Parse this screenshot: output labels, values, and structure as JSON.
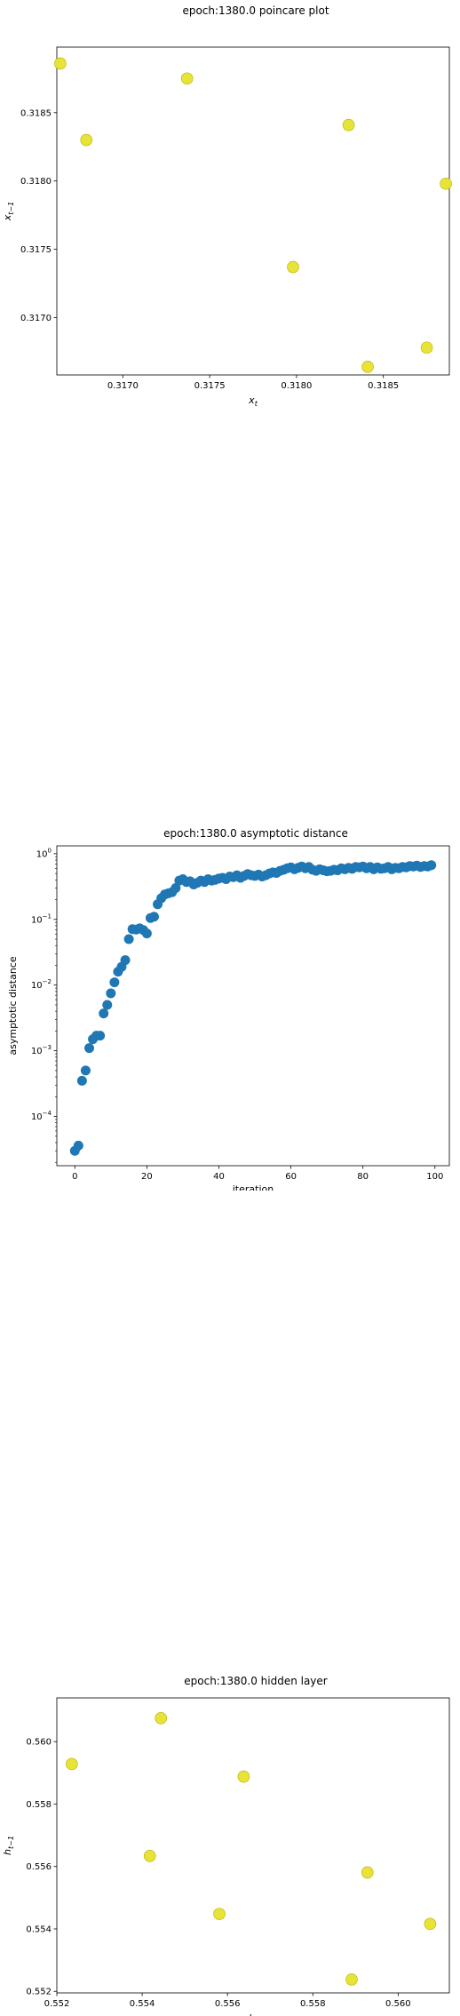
{
  "chart_data": [
    {
      "type": "scatter",
      "title": "epoch:1380.0 poincare plot",
      "xlabel": "x_t",
      "ylabel": "x_{t-1}",
      "xlim": [
        0.31662,
        0.31888
      ],
      "ylim": [
        0.31658,
        0.31898
      ],
      "xticks": [
        0.317,
        0.3175,
        0.318,
        0.3185
      ],
      "xtick_labels": [
        "0.3170",
        "0.3175",
        "0.3180",
        "0.3185"
      ],
      "yticks": [
        0.317,
        0.3175,
        0.318,
        0.3185
      ],
      "ytick_labels": [
        "0.3170",
        "0.3175",
        "0.3180",
        "0.3185"
      ],
      "marker_color": "#e8e337",
      "marker_edge": "#b8b000",
      "points": [
        {
          "x": 0.31664,
          "y": 0.31886
        },
        {
          "x": 0.31679,
          "y": 0.3183
        },
        {
          "x": 0.31737,
          "y": 0.31875
        },
        {
          "x": 0.31798,
          "y": 0.31737
        },
        {
          "x": 0.3183,
          "y": 0.31841
        },
        {
          "x": 0.31841,
          "y": 0.31664
        },
        {
          "x": 0.31875,
          "y": 0.31678
        },
        {
          "x": 0.31886,
          "y": 0.31798
        }
      ]
    },
    {
      "type": "scatter",
      "title": "epoch:1380.0 asymptotic distance",
      "xlabel": "iteration",
      "ylabel": "asymptotic distance",
      "yscale": "log",
      "xlim": [
        -5,
        104
      ],
      "ylim_log10": [
        -4.75,
        0.12
      ],
      "xticks": [
        0,
        20,
        40,
        60,
        80,
        100
      ],
      "xtick_labels": [
        "0",
        "20",
        "40",
        "60",
        "80",
        "100"
      ],
      "ytick_exponents": [
        -4,
        -3,
        -2,
        -1,
        0
      ],
      "marker_color": "#1f77b4",
      "x": [
        0,
        1,
        2,
        3,
        4,
        5,
        6,
        7,
        8,
        9,
        10,
        11,
        12,
        13,
        14,
        15,
        16,
        17,
        18,
        19,
        20,
        21,
        22,
        23,
        24,
        25,
        26,
        27,
        28,
        29,
        30,
        31,
        32,
        33,
        34,
        35,
        36,
        37,
        38,
        39,
        40,
        41,
        42,
        43,
        44,
        45,
        46,
        47,
        48,
        49,
        50,
        51,
        52,
        53,
        54,
        55,
        56,
        57,
        58,
        59,
        60,
        61,
        62,
        63,
        64,
        65,
        66,
        67,
        68,
        69,
        70,
        71,
        72,
        73,
        74,
        75,
        76,
        77,
        78,
        79,
        80,
        81,
        82,
        83,
        84,
        85,
        86,
        87,
        88,
        89,
        90,
        91,
        92,
        93,
        94,
        95,
        96,
        97,
        98,
        99
      ],
      "y": [
        3e-05,
        3.6e-05,
        0.00035,
        0.0005,
        0.0011,
        0.0015,
        0.0017,
        0.0017,
        0.0037,
        0.005,
        0.0075,
        0.011,
        0.016,
        0.019,
        0.024,
        0.05,
        0.071,
        0.07,
        0.073,
        0.069,
        0.061,
        0.105,
        0.11,
        0.17,
        0.21,
        0.24,
        0.25,
        0.26,
        0.3,
        0.39,
        0.41,
        0.37,
        0.38,
        0.34,
        0.36,
        0.39,
        0.37,
        0.41,
        0.39,
        0.4,
        0.42,
        0.43,
        0.41,
        0.45,
        0.44,
        0.47,
        0.43,
        0.46,
        0.49,
        0.47,
        0.46,
        0.48,
        0.45,
        0.47,
        0.5,
        0.52,
        0.51,
        0.55,
        0.57,
        0.6,
        0.62,
        0.58,
        0.61,
        0.64,
        0.6,
        0.63,
        0.57,
        0.55,
        0.58,
        0.56,
        0.54,
        0.55,
        0.57,
        0.56,
        0.6,
        0.58,
        0.61,
        0.59,
        0.63,
        0.62,
        0.64,
        0.6,
        0.63,
        0.58,
        0.62,
        0.59,
        0.6,
        0.63,
        0.58,
        0.61,
        0.6,
        0.63,
        0.62,
        0.65,
        0.64,
        0.66,
        0.63,
        0.65,
        0.64,
        0.67
      ]
    },
    {
      "type": "scatter",
      "title": "epoch:1380.0 hidden layer",
      "xlabel": "h_t",
      "ylabel": "h_{t-1}",
      "xlim": [
        0.552,
        0.5612
      ],
      "ylim": [
        0.55195,
        0.5614
      ],
      "xticks": [
        0.552,
        0.554,
        0.556,
        0.558,
        0.56
      ],
      "xtick_labels": [
        "0.552",
        "0.554",
        "0.556",
        "0.558",
        "0.560"
      ],
      "yticks": [
        0.552,
        0.554,
        0.556,
        0.558,
        0.56
      ],
      "ytick_labels": [
        "0.552",
        "0.554",
        "0.556",
        "0.558",
        "0.560"
      ],
      "marker_color": "#e8e337",
      "marker_edge": "#b8b000",
      "points": [
        {
          "x": 0.55235,
          "y": 0.55928
        },
        {
          "x": 0.55418,
          "y": 0.55634
        },
        {
          "x": 0.55444,
          "y": 0.56075
        },
        {
          "x": 0.55581,
          "y": 0.55448
        },
        {
          "x": 0.55638,
          "y": 0.55888
        },
        {
          "x": 0.55891,
          "y": 0.55238
        },
        {
          "x": 0.55928,
          "y": 0.55581
        },
        {
          "x": 0.56075,
          "y": 0.55416
        }
      ]
    }
  ]
}
